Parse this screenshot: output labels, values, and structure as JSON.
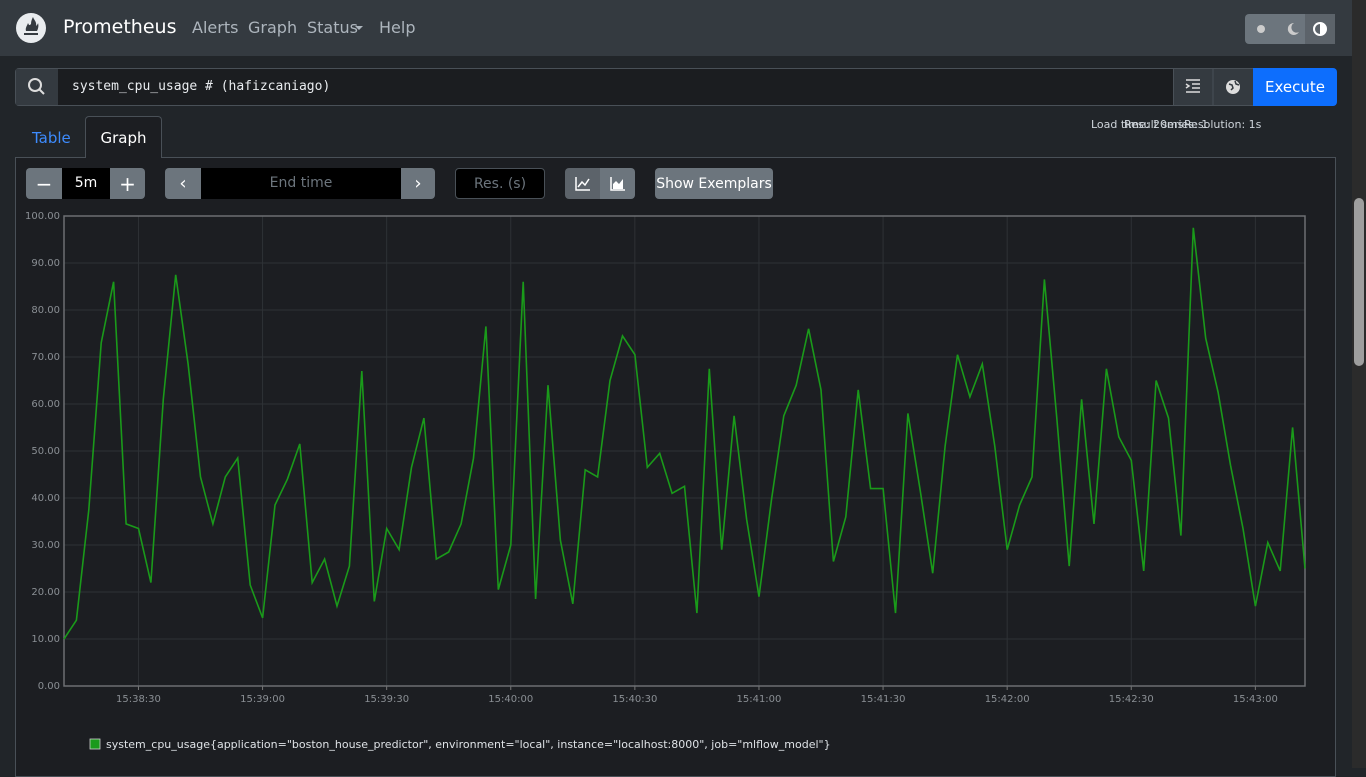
{
  "nav": {
    "brand": "Prometheus",
    "links": [
      "Alerts",
      "Graph",
      "Status",
      "Help"
    ]
  },
  "query": {
    "expression": "system_cpu_usage # (hafizcaniago)",
    "execute": "Execute"
  },
  "stats": {
    "load_time": "Load time: 20ms",
    "resolution": "Resolution: 1s",
    "result_series": "Result series: 1"
  },
  "tabs": [
    "Table",
    "Graph"
  ],
  "controls": {
    "range": "5m",
    "end_time": "End time",
    "resolution": "Res. (s)",
    "exemplars": "Show Exemplars"
  },
  "chart_data": {
    "type": "line",
    "x": [
      "15:38:12",
      "15:38:15",
      "15:38:18",
      "15:38:21",
      "15:38:24",
      "15:38:27",
      "15:38:30",
      "15:38:33",
      "15:38:36",
      "15:38:39",
      "15:38:42",
      "15:38:45",
      "15:38:48",
      "15:38:51",
      "15:38:54",
      "15:38:57",
      "15:39:00",
      "15:39:03",
      "15:39:06",
      "15:39:09",
      "15:39:12",
      "15:39:15",
      "15:39:18",
      "15:39:21",
      "15:39:24",
      "15:39:27",
      "15:39:30",
      "15:39:33",
      "15:39:36",
      "15:39:39",
      "15:39:42",
      "15:39:45",
      "15:39:48",
      "15:39:51",
      "15:39:54",
      "15:39:57",
      "15:40:00",
      "15:40:03",
      "15:40:06",
      "15:40:09",
      "15:40:12",
      "15:40:15",
      "15:40:18",
      "15:40:21",
      "15:40:24",
      "15:40:27",
      "15:40:30",
      "15:40:33",
      "15:40:36",
      "15:40:39",
      "15:40:42",
      "15:40:45",
      "15:40:48",
      "15:40:51",
      "15:40:54",
      "15:40:57",
      "15:41:00",
      "15:41:03",
      "15:41:06",
      "15:41:09",
      "15:41:12",
      "15:41:15",
      "15:41:18",
      "15:41:21",
      "15:41:24",
      "15:41:27",
      "15:41:30",
      "15:41:33",
      "15:41:36",
      "15:41:39",
      "15:41:42",
      "15:41:45",
      "15:41:48",
      "15:41:51",
      "15:41:54",
      "15:41:57",
      "15:42:00",
      "15:42:03",
      "15:42:06",
      "15:42:09",
      "15:42:12",
      "15:42:15",
      "15:42:18",
      "15:42:21",
      "15:42:24",
      "15:42:27",
      "15:42:30",
      "15:42:33",
      "15:42:36",
      "15:42:39",
      "15:42:42",
      "15:42:45",
      "15:42:48",
      "15:42:51",
      "15:42:54",
      "15:42:57",
      "15:43:00",
      "15:43:03",
      "15:43:06",
      "15:43:09",
      "15:43:12"
    ],
    "series": [
      {
        "name": "system_cpu_usage{application=\"boston_house_predictor\", environment=\"local\", instance=\"localhost:8000\", job=\"mlflow_model\"}",
        "color": "#1a9a1a",
        "values": [
          10,
          14,
          37.5,
          73,
          86,
          34.5,
          33.5,
          22,
          61,
          87.5,
          68.5,
          44.5,
          34.5,
          44.5,
          48.5,
          21.5,
          14.5,
          38.5,
          44,
          51.5,
          22,
          27,
          17,
          25.5,
          67,
          18,
          33.5,
          29,
          46.5,
          57,
          27,
          28.5,
          34.5,
          48.5,
          76.5,
          20.5,
          30,
          86,
          18.5,
          64,
          31,
          17.5,
          46,
          44.5,
          65,
          74.5,
          70.5,
          46.5,
          49.5,
          41,
          42.5,
          15.5,
          67.5,
          29,
          57.5,
          35.5,
          19,
          39.5,
          57.5,
          64,
          76,
          63,
          26.5,
          36,
          63,
          42,
          42,
          15.5,
          58,
          41.5,
          24,
          51,
          70.5,
          61.5,
          68.5,
          51,
          29,
          38.5,
          44.5,
          86.5,
          57,
          25.5,
          61,
          34.5,
          67.5,
          53,
          48,
          24.5,
          65,
          57,
          32,
          97.5,
          74,
          62.5,
          47,
          33.5,
          17,
          30.5,
          24.5,
          55,
          25
        ]
      }
    ],
    "xlim": [
      "15:38:12",
      "15:43:12"
    ],
    "xticks": [
      "15:38:30",
      "15:39:00",
      "15:39:30",
      "15:40:00",
      "15:40:30",
      "15:41:00",
      "15:41:30",
      "15:42:00",
      "15:42:30",
      "15:43:00"
    ],
    "ylim": [
      0,
      100
    ],
    "yticks": [
      {
        "value": 0,
        "label": "0.00"
      },
      {
        "value": 10,
        "label": "10.00"
      },
      {
        "value": 20,
        "label": "20.00"
      },
      {
        "value": 30,
        "label": "30.00"
      },
      {
        "value": 40,
        "label": "40.00"
      },
      {
        "value": 50,
        "label": "50.00"
      },
      {
        "value": 60,
        "label": "60.00"
      },
      {
        "value": 70,
        "label": "70.00"
      },
      {
        "value": 80,
        "label": "80.00"
      },
      {
        "value": 90,
        "label": "90.00"
      },
      {
        "value": 100,
        "label": "100.00"
      }
    ],
    "grid": true
  }
}
